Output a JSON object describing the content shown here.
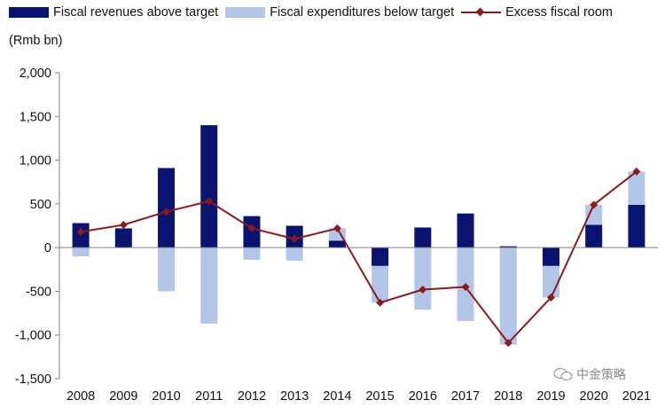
{
  "colors": {
    "revenues": "#0b1370",
    "expenditures": "#b4c6e7",
    "excess": "#8b1a1a",
    "axis": "#808080"
  },
  "legend": {
    "revenues": "Fiscal revenues above target",
    "expenditures": "Fiscal expenditures below target",
    "excess": "Excess fiscal room"
  },
  "unit_label": "(Rmb bn)",
  "watermark": "中金策略",
  "chart_data": {
    "type": "bar",
    "stacked": true,
    "title": "",
    "xlabel": "",
    "ylabel": "(Rmb bn)",
    "ylim": [
      -1500,
      2000
    ],
    "yticks": [
      2000,
      1500,
      1000,
      500,
      0,
      -500,
      -1000,
      -1500
    ],
    "ytick_labels": [
      "2,000",
      "1,500",
      "1,000",
      "500",
      "0",
      "-500",
      "-1,000",
      "-1,500"
    ],
    "categories": [
      "2008",
      "2009",
      "2010",
      "2011",
      "2012",
      "2013",
      "2014",
      "2015",
      "2016",
      "2017",
      "2018",
      "2019",
      "2020",
      "2021"
    ],
    "series": [
      {
        "name": "Fiscal revenues above target",
        "type": "bar",
        "values": [
          280,
          220,
          910,
          1400,
          360,
          250,
          80,
          -210,
          230,
          390,
          15,
          -210,
          260,
          490
        ]
      },
      {
        "name": "Fiscal expenditures below target",
        "type": "bar",
        "values": [
          -100,
          0,
          -500,
          -870,
          -140,
          -150,
          140,
          -420,
          -710,
          -840,
          -1110,
          -360,
          230,
          380
        ]
      },
      {
        "name": "Excess fiscal room",
        "type": "line",
        "values": [
          180,
          260,
          410,
          530,
          220,
          100,
          220,
          -630,
          -480,
          -450,
          -1090,
          -570,
          490,
          870
        ]
      }
    ]
  }
}
